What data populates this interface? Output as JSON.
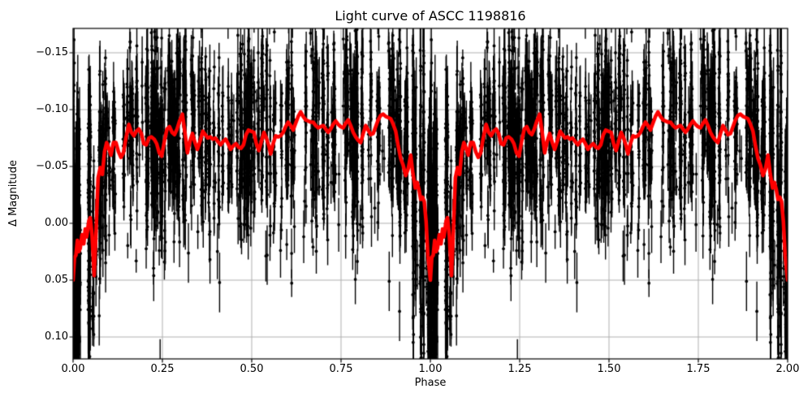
{
  "title": "Light curve of ASCC 1198816",
  "axes": {
    "xlabel": "Phase",
    "ylabel": "Δ Magnitude",
    "x_ticks": [
      "0.00",
      "0.25",
      "0.50",
      "0.75",
      "1.00",
      "1.25",
      "1.50",
      "1.75",
      "2.00"
    ],
    "y_ticks": [
      "−0.15",
      "−0.10",
      "−0.05",
      "0.00",
      "0.05",
      "0.10"
    ]
  },
  "style": {
    "curve_color": "#ff0000",
    "point_color": "#000000",
    "grid_color": "#b0b0b0",
    "spine_color": "#000000",
    "background": "#ffffff"
  },
  "chart_data": {
    "type": "scatter",
    "title": "Light curve of ASCC 1198816",
    "xlabel": "Phase",
    "ylabel": "Δ Magnitude",
    "x_tick_values": [
      0,
      0.25,
      0.5,
      0.75,
      1,
      1.25,
      1.5,
      1.75,
      2
    ],
    "y_tick_values": [
      -0.15,
      -0.1,
      -0.05,
      0,
      0.05,
      0.1
    ],
    "xlim": [
      0,
      2
    ],
    "ylim": [
      0.119,
      -0.171
    ],
    "y_axis_inverted": true,
    "grid": true,
    "legend": false,
    "series_names": [
      "phase-folded observations with error bars",
      "binned mean light curve"
    ],
    "binned_curve": {
      "color": "#ff0000",
      "linewidth": 4.5,
      "cycles": 2,
      "phase": [
        0.0,
        0.004,
        0.008,
        0.012,
        0.016,
        0.02,
        0.025,
        0.03,
        0.034,
        0.038,
        0.044,
        0.048,
        0.053,
        0.059,
        0.064,
        0.07,
        0.076,
        0.082,
        0.088,
        0.094,
        0.1,
        0.106,
        0.113,
        0.12,
        0.127,
        0.134,
        0.141,
        0.148,
        0.156,
        0.163,
        0.17,
        0.177,
        0.184,
        0.191,
        0.198,
        0.205,
        0.212,
        0.219,
        0.227,
        0.234,
        0.241,
        0.248,
        0.256,
        0.263,
        0.27,
        0.277,
        0.284,
        0.291,
        0.298,
        0.306,
        0.313,
        0.32,
        0.327,
        0.334,
        0.341,
        0.348,
        0.356,
        0.363,
        0.37,
        0.377,
        0.384,
        0.391,
        0.398,
        0.405,
        0.413,
        0.42,
        0.427,
        0.434,
        0.441,
        0.448,
        0.456,
        0.463,
        0.47,
        0.477,
        0.484,
        0.491,
        0.498,
        0.506,
        0.513,
        0.52,
        0.527,
        0.534,
        0.541,
        0.548,
        0.553,
        0.56,
        0.567,
        0.574,
        0.581,
        0.588,
        0.595,
        0.602,
        0.609,
        0.616,
        0.623,
        0.63,
        0.637,
        0.644,
        0.651,
        0.658,
        0.665,
        0.672,
        0.679,
        0.686,
        0.693,
        0.7,
        0.707,
        0.714,
        0.721,
        0.728,
        0.735,
        0.742,
        0.749,
        0.756,
        0.763,
        0.77,
        0.777,
        0.784,
        0.791,
        0.798,
        0.805,
        0.812,
        0.819,
        0.826,
        0.833,
        0.84,
        0.847,
        0.854,
        0.861,
        0.868,
        0.875,
        0.882,
        0.889,
        0.896,
        0.903,
        0.91,
        0.917,
        0.924,
        0.931,
        0.938,
        0.945,
        0.951,
        0.958,
        0.963,
        0.968,
        0.973,
        0.978,
        0.983,
        0.988,
        0.993,
        1.0
      ],
      "mag": [
        0.05,
        0.03,
        0.028,
        0.015,
        0.025,
        0.022,
        0.01,
        0.018,
        0.005,
        0.012,
        -0.002,
        -0.005,
        0.01,
        0.046,
        0.01,
        -0.04,
        -0.049,
        -0.043,
        -0.063,
        -0.071,
        -0.066,
        -0.06,
        -0.071,
        -0.071,
        -0.063,
        -0.058,
        -0.062,
        -0.075,
        -0.087,
        -0.08,
        -0.077,
        -0.081,
        -0.083,
        -0.079,
        -0.07,
        -0.069,
        -0.075,
        -0.076,
        -0.074,
        -0.07,
        -0.062,
        -0.059,
        -0.073,
        -0.083,
        -0.085,
        -0.08,
        -0.078,
        -0.083,
        -0.09,
        -0.096,
        -0.08,
        -0.062,
        -0.072,
        -0.079,
        -0.071,
        -0.065,
        -0.073,
        -0.081,
        -0.078,
        -0.075,
        -0.076,
        -0.074,
        -0.075,
        -0.072,
        -0.069,
        -0.072,
        -0.074,
        -0.07,
        -0.065,
        -0.068,
        -0.07,
        -0.067,
        -0.066,
        -0.069,
        -0.078,
        -0.082,
        -0.081,
        -0.08,
        -0.07,
        -0.064,
        -0.072,
        -0.08,
        -0.075,
        -0.068,
        -0.061,
        -0.07,
        -0.077,
        -0.076,
        -0.077,
        -0.08,
        -0.085,
        -0.089,
        -0.086,
        -0.082,
        -0.088,
        -0.094,
        -0.098,
        -0.094,
        -0.091,
        -0.09,
        -0.089,
        -0.089,
        -0.086,
        -0.084,
        -0.085,
        -0.086,
        -0.083,
        -0.08,
        -0.083,
        -0.087,
        -0.09,
        -0.087,
        -0.085,
        -0.084,
        -0.088,
        -0.091,
        -0.086,
        -0.08,
        -0.076,
        -0.073,
        -0.071,
        -0.079,
        -0.086,
        -0.082,
        -0.078,
        -0.079,
        -0.085,
        -0.091,
        -0.095,
        -0.096,
        -0.094,
        -0.093,
        -0.092,
        -0.087,
        -0.081,
        -0.068,
        -0.057,
        -0.051,
        -0.042,
        -0.048,
        -0.06,
        -0.044,
        -0.031,
        -0.036,
        -0.03,
        -0.021,
        -0.023,
        -0.019,
        -0.002,
        0.028,
        0.05
      ]
    },
    "observations_model": {
      "color": "#000000",
      "marker": "point",
      "errorbars": true,
      "cycles": 2,
      "seed": 1198816,
      "columns_per_cycle": 165,
      "eclipse_phases": [
        0.0005,
        0.0015,
        0.003,
        0.9965,
        0.998,
        0.9995
      ],
      "points_range": [
        3,
        29
      ],
      "eclipse_points_range": [
        20,
        70
      ],
      "sigma_range": [
        0.022,
        0.052
      ],
      "eclipse_sigma_range": [
        0.045,
        0.085
      ],
      "errorbar_half_range": [
        0.007,
        0.027
      ],
      "outliers_per_cycle": 70
    }
  }
}
